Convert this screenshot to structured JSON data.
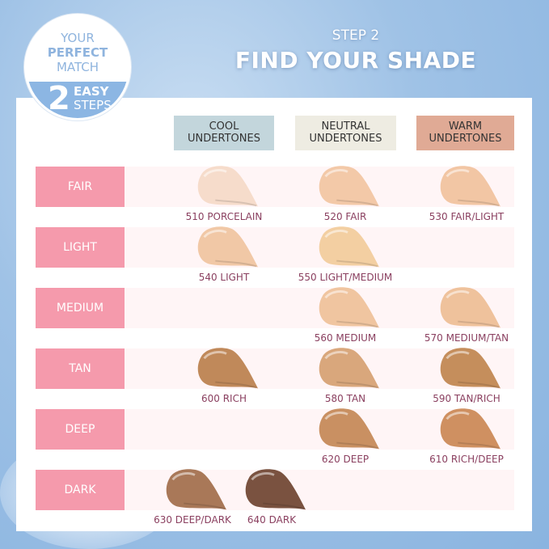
{
  "badge": {
    "line1": "YOUR",
    "line2": "PERFECT",
    "line3": "MATCH",
    "number": "2",
    "easy": "EASY",
    "steps": "STEPS"
  },
  "header": {
    "step": "STEP 2",
    "title": "FIND YOUR SHADE"
  },
  "undertones": [
    {
      "label": "COOL UNDERTONES",
      "color": "#c3d6dc"
    },
    {
      "label": "NEUTRAL UNDERTONES",
      "color": "#eeece2"
    },
    {
      "label": "WARM UNDERTONES",
      "color": "#e0aa95"
    }
  ],
  "rows": [
    {
      "label": "FAIR",
      "shades": [
        {
          "name": "510 PORCELAIN",
          "color": "#f6dccb"
        },
        {
          "name": "520 FAIR",
          "color": "#f3c9a8"
        },
        {
          "name": "530 FAIR/LIGHT",
          "color": "#f2c6a4"
        }
      ]
    },
    {
      "label": "LIGHT",
      "shades": [
        {
          "name": "540 LIGHT",
          "color": "#f1c8a6"
        },
        {
          "name": "550 LIGHT/MEDIUM",
          "color": "#f3cfa2"
        }
      ]
    },
    {
      "label": "MEDIUM",
      "shades": [
        {
          "name": "560 MEDIUM",
          "color": "#f0c5a0"
        },
        {
          "name": "570 MEDIUM/TAN",
          "color": "#efc29c"
        }
      ]
    },
    {
      "label": "TAN",
      "shades": [
        {
          "name": "600 RICH",
          "color": "#c0895a"
        },
        {
          "name": "580 TAN",
          "color": "#d9a77c"
        },
        {
          "name": "590 TAN/RICH",
          "color": "#c58e5c"
        }
      ]
    },
    {
      "label": "DEEP",
      "shades": [
        {
          "name": "620 DEEP",
          "color": "#c99062"
        },
        {
          "name": "610 RICH/DEEP",
          "color": "#cf9061"
        }
      ]
    },
    {
      "label": "DARK",
      "shades": [
        {
          "name": "630 DEEP/DARK",
          "color": "#a97858"
        },
        {
          "name": "640 DARK",
          "color": "#7a5240"
        }
      ]
    }
  ],
  "colors": {
    "row_label": "#f59aac",
    "shade_text": "#8a3f5f",
    "sky": "#9fc2e6"
  }
}
